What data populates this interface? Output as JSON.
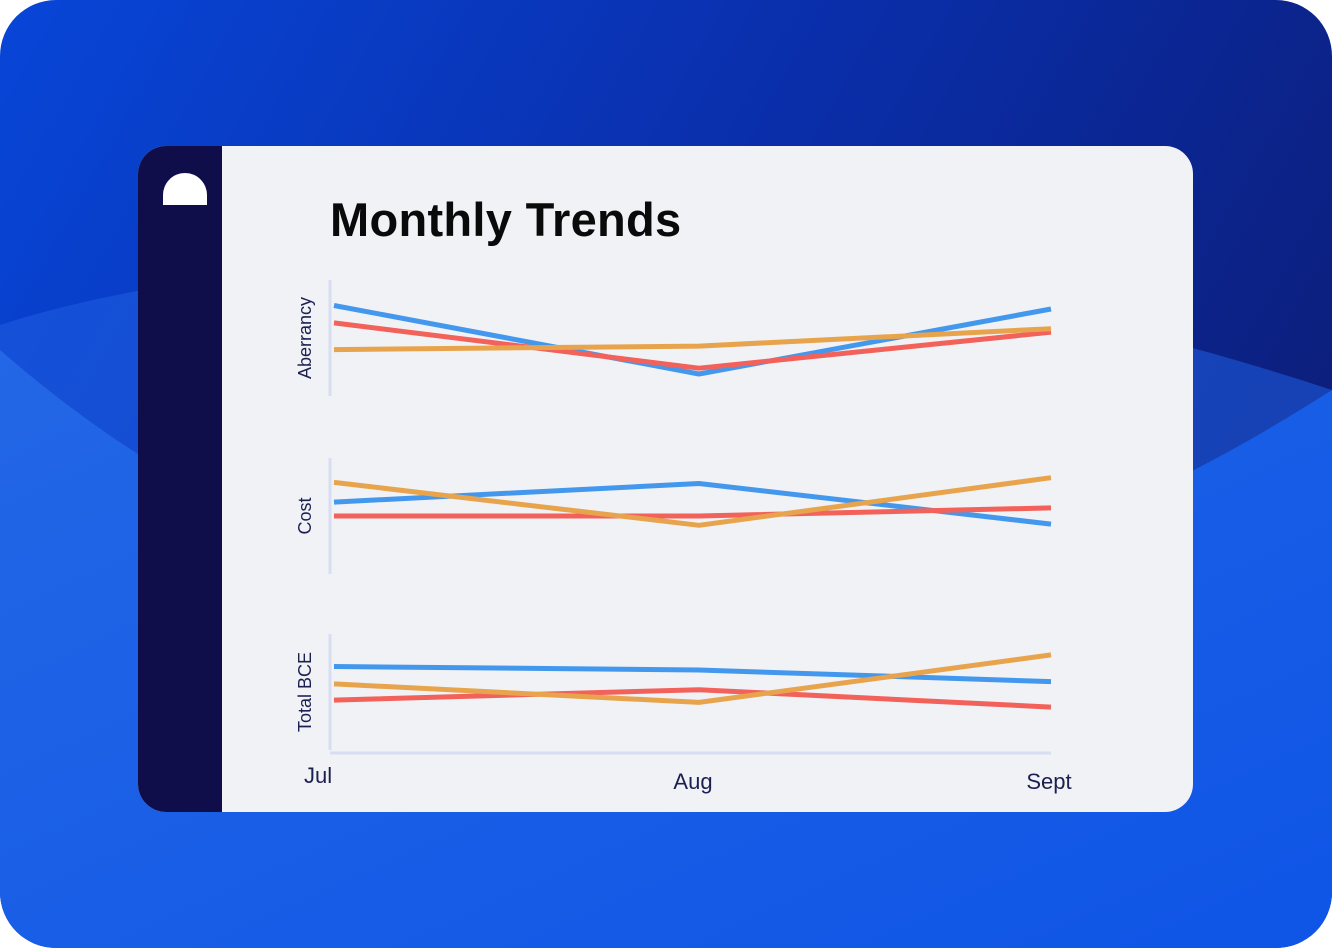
{
  "colors": {
    "bg_top": "#0a2aa8",
    "bg_main": "#1a5ae8",
    "card_bg": "#f1f2f5",
    "sidebar": "#100e4a",
    "axis": "#d7def2"
  },
  "chart_data": {
    "type": "line",
    "title": "Monthly Trends",
    "categories": [
      "Jul",
      "Aug",
      "Sept"
    ],
    "panels": [
      {
        "ylabel": "Aberrancy",
        "ylim": [
          0,
          100
        ],
        "series": [
          {
            "name": "blue",
            "color": "#4398ee",
            "values": [
              78,
              19,
              75
            ]
          },
          {
            "name": "red",
            "color": "#f2625b",
            "values": [
              63,
              24,
              55
            ]
          },
          {
            "name": "orange",
            "color": "#e8a44d",
            "values": [
              40,
              43,
              58
            ]
          }
        ]
      },
      {
        "ylabel": "Cost",
        "ylim": [
          0,
          100
        ],
        "series": [
          {
            "name": "blue",
            "color": "#4398ee",
            "values": [
              62,
              78,
              43
            ]
          },
          {
            "name": "red",
            "color": "#f2625b",
            "values": [
              50,
              50,
              57
            ]
          },
          {
            "name": "orange",
            "color": "#e8a44d",
            "values": [
              79,
              42,
              83
            ]
          }
        ]
      },
      {
        "ylabel": "Total BCE",
        "ylim": [
          0,
          100
        ],
        "series": [
          {
            "name": "blue",
            "color": "#4398ee",
            "values": [
              72,
              69,
              59
            ]
          },
          {
            "name": "red",
            "color": "#f2625b",
            "values": [
              43,
              52,
              37
            ]
          },
          {
            "name": "orange",
            "color": "#e8a44d",
            "values": [
              57,
              41,
              82
            ]
          }
        ]
      }
    ]
  }
}
